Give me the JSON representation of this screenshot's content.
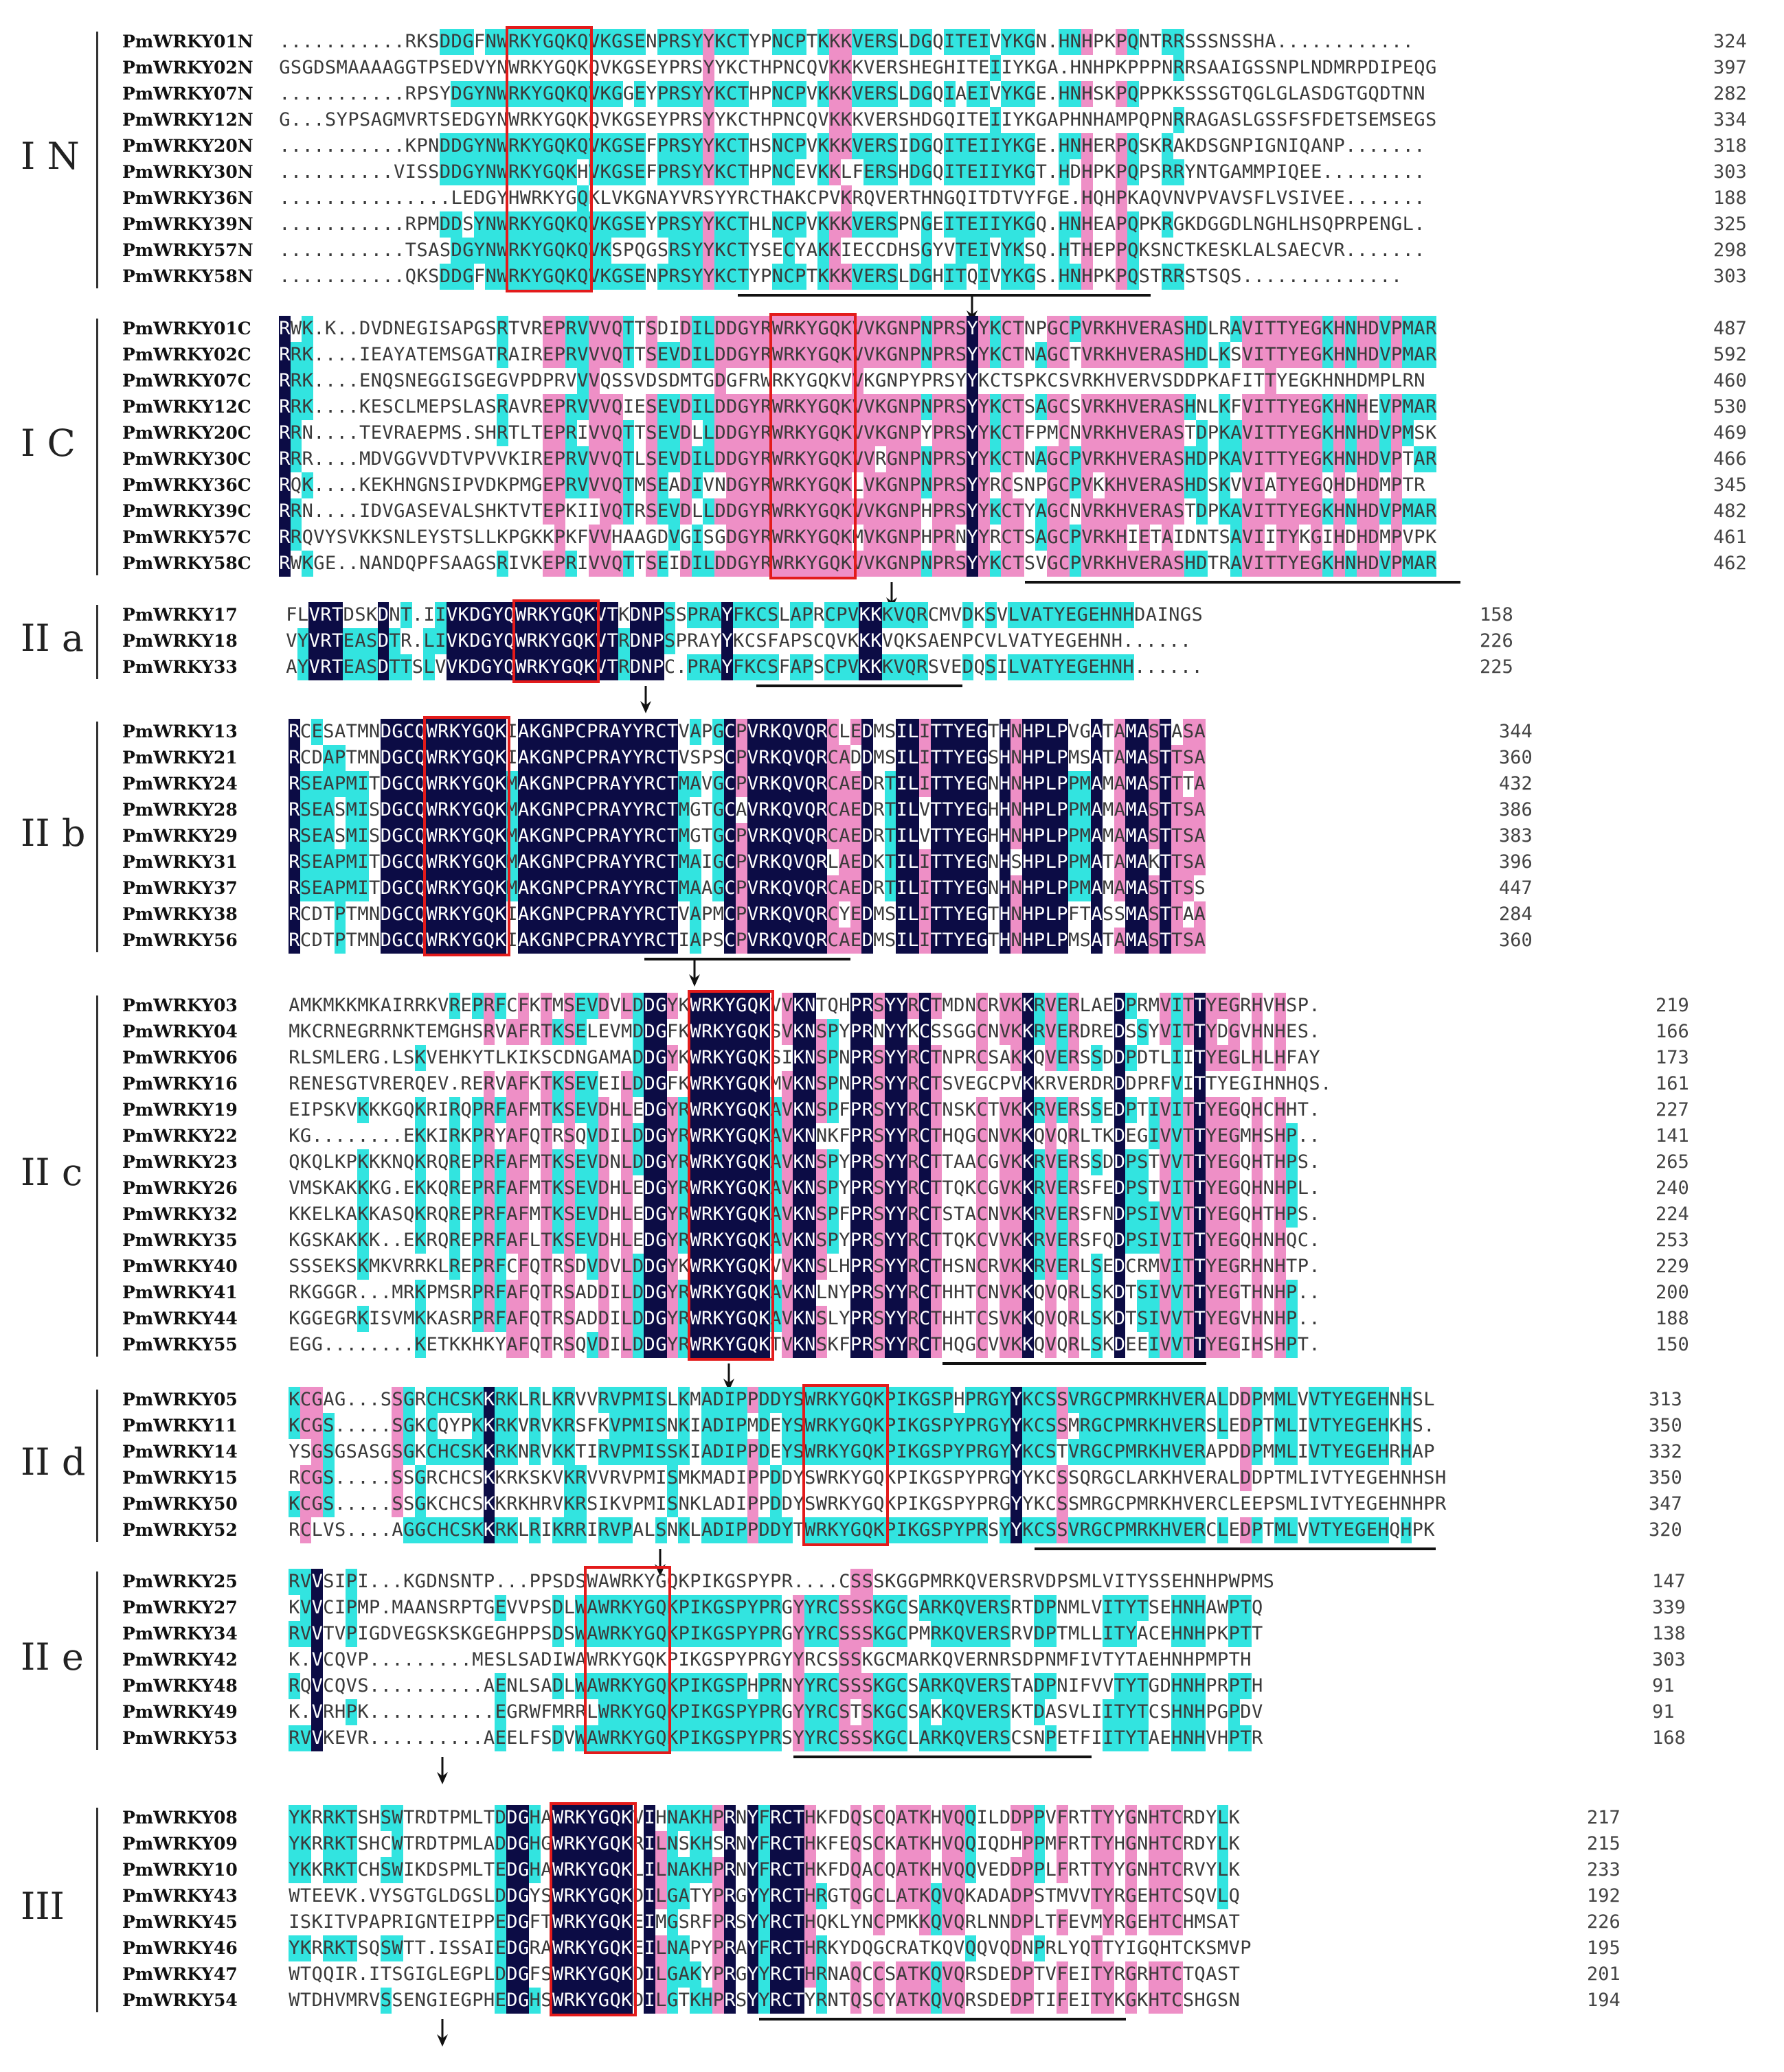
{
  "colors": {
    "identical": "#0c0c45",
    "high_similarity": "#ee8fc6",
    "low_similarity": "#32e4e0",
    "motif_box": "#e31b1b"
  },
  "groups": [
    {
      "label": "I N",
      "rows": [
        {
          "name": "PmWRKY01N",
          "seq": "...........RKSDDGFNWRKYGQKQVKGSENPRSYYKCTYPNCPTKKKVERSLDGQITEIVYKGN.HNHPKPQNTRRSSSNSSHA............",
          "end": "324"
        },
        {
          "name": "PmWRKY02N",
          "seq": "GSGDSMAAAAGGTPSEDVYNWRKYGQKQVKGSEYPRSYYKCTHPNCQVKKKVERSHEGHITEIIYKGA.HNHPKPPPNRRSAAIGSSNPLNDMRPDIPEQG",
          "end": "397"
        },
        {
          "name": "PmWRKY07N",
          "seq": "...........RPSYDGYNWRKYGQKQVKGGEYPRSYYKCTHPNCPVKKKVERSLDGQIAEIVYKGE.HNHSKPQPPKKSSSGTQGLGLASDGTGQDTNN",
          "end": "282"
        },
        {
          "name": "PmWRKY12N",
          "seq": "G...SYPSAGMVRTSEDGYNWRKYGQKQVKGSEYPRSYYKCTHPNCQVKKKVERSHDGQITEIIYKGAPHNHAMPQPNRRAGASLGSSFSFDETSEMSEGS",
          "end": "334"
        },
        {
          "name": "PmWRKY20N",
          "seq": "...........KPNDDGYNWRKYGQKQVKGSEFPRSYYKCTHSNCPVKKKVERSIDGQITEIIYKGE.HNHERPQSKRAKDSGNPIGNIQANP.......",
          "end": "318"
        },
        {
          "name": "PmWRKY30N",
          "seq": "..........VISSDDGYNWRKYGQKHVKGSEFPRSYYKCTHPNCEVKKLFERSHDGQITEIIYKGT.HDHPKPQPSRRYNTGAMMPIQEE.........",
          "end": "303"
        },
        {
          "name": "PmWRKY36N",
          "seq": "...............LEDGYHWRKYGQKLVKGNAYVRSYYRCTHAKCPVKRQVERTHNGQITDTVYFGE.HQHPKAQVNVPVAVSFLVSIVEE.......",
          "end": "188"
        },
        {
          "name": "PmWRKY39N",
          "seq": "...........RPMDDSYNWRKYGQKQVKGSEYPRSYYKCTHLNCPVKKKVERSPNGEITEIIYKGQ.HNHEAPQPKRGKDGGDLNGHLHSQPRPENGL.",
          "end": "325"
        },
        {
          "name": "PmWRKY57N",
          "seq": "...........TSASDGYNWRKYGQKQVKSPQGSRSYYKCTYSECYAKKIECCDHSGYVTEIVYKSQ.HTHEPPQKSNCTKESKLALSAECVR.......",
          "end": "298"
        },
        {
          "name": "PmWRKY58N",
          "seq": "...........QKSDDGFNWRKYGQKQVKGSENPRSYYKCTYPNCPTKKKVERSLDGHITQIVYKGS.HNHPKPQSTRRSTSQS..............",
          "end": "303"
        }
      ]
    },
    {
      "label": "I C",
      "rows": [
        {
          "name": "PmWRKY01C",
          "seq": "RWK.K..DVDNEGISAPGSRTVREPRVVVQTTSDIDILDDGYRWRKYGQKVVKGNPNPRSYYKCTNPGCPVRKHVERASHDLRAVITTYEGKHNHDVPMAR",
          "end": "487"
        },
        {
          "name": "PmWRKY02C",
          "seq": "RRK....IEAYATEMSGATRAIREPRVVVQTTSEVDILDDGYRWRKYGQKVVKGNPNPRSYYKCTNAGCTVRKHVERASHDLKSVITTYEGKHNHDVPMAR",
          "end": "592"
        },
        {
          "name": "PmWRKY07C",
          "seq": "RRK....ENQSNEGGISGEGVPDPRVVVQSSVDSDMTGDGFRWRKYGQKVVKGNPYPRSYYKCTSPKCSVRKHVERVSDDPKAFITTYEGKHNHDMPLRN",
          "end": "460"
        },
        {
          "name": "PmWRKY12C",
          "seq": "RRK....KESCLMEPSLASRAVREPRVVVQIESEVDILDDGYRWRKYGQKVVKGNPNPRSYYKCTSAGCSVRKHVERASHNLKFVITTYEGKHNHEVPMAR",
          "end": "530"
        },
        {
          "name": "PmWRKY20C",
          "seq": "RRN....TEVRAEPMS.SHRTLTEPRIVVQTTSEVDLLDDGYRWRKYGQKVVKGNPYPRSYYKCTFPMCNVRKHVERASTDPKAVITTYEGKHNHDVPMSK",
          "end": "469"
        },
        {
          "name": "PmWRKY30C",
          "seq": "RRR....MDVGGVVDTVPVVKIREPRVVVQTLSEVDILDDGYRWRKYGQKVVRGNPNPRSYYKCTNAGCPVRKHVERASHDPKAVITTYEGKHNHDVPTAR",
          "end": "466"
        },
        {
          "name": "PmWRKY36C",
          "seq": "RQK....KEKHNGNSIPVDKPMGEPRVVVQTMSEADIVNDGYRWRKYGQKLVKGNPNPRSYYRCSNPGCPVKKHVERASHDSKVVIATYEGQHDHDMPTR",
          "end": "345"
        },
        {
          "name": "PmWRKY39C",
          "seq": "RRN....IDVGASEVALSHKTVTEPKIIVQTRSEVDLLDDGYRWRKYGQKVVKGNPHPRSYYKCTYAGCNVRKHVERASTDPKAVITTYEGKHNHDVPMAR",
          "end": "482"
        },
        {
          "name": "PmWRKY57C",
          "seq": "RRQVYSVKKSNLEYSTSLLKPGKKPKFVVHAAGDVGISGDGYRWRKYGQKMVKGNPHPRNYYRCTSAGCPVRKHIETAIDNTSAVIITYKGIHDHDMPVPK",
          "end": "461"
        },
        {
          "name": "PmWRKY58C",
          "seq": "RWKGE..NANDQPFSAAGSRIVKEPRIVVQTTSEIDILDDGYRWRKYGQKVVKGNPNPRSYYKCTSVGCPVRKHVERASHDTRAVITTYEGKHNHDVPMAR",
          "end": "462"
        }
      ]
    },
    {
      "label": "II a",
      "rows": [
        {
          "name": "PmWRKY17",
          "seq": "FLVRTDSKDNT.IIVKDGYQWRKYGQKVTKDNPSSPRAYFKCSLAPRCPVKKKVQRCMVDKSVLVATYEGEHNHDAINGS",
          "end": "158"
        },
        {
          "name": "PmWRKY18",
          "seq": "VYVRTEASDTR.LIVKDGYQWRKYGQKVTRDNPSPRAYYKCSFAPSCQVKKKVQKSAENPCVLVATYEGEHNH......",
          "end": "226"
        },
        {
          "name": "PmWRKY33",
          "seq": "AYVRTEASDTTSLVVKDGYQWRKYGQKVTRDNPC.PRAYFKCSFAPSCPVKKKVQRSVEDQSILVATYEGEHNH......",
          "end": "225"
        }
      ]
    },
    {
      "label": "II b",
      "rows": [
        {
          "name": "PmWRKY13",
          "seq": "RCESATMNDGCQWRKYGQKIAKGNPCPRAYYRCTVAPGCPVRKQVQRCLEDMSILITTYEGTHNHPLPVGATAMASTASA",
          "end": "344"
        },
        {
          "name": "PmWRKY21",
          "seq": "RCDAPTMNDGCQWRKYGQKIAKGNPCPRAYYRCTVSPSCPVRKQVQRCADDMSILITTYEGSHNHPLPMSATAMASTTSA",
          "end": "360"
        },
        {
          "name": "PmWRKY24",
          "seq": "RSEAPMITDGCQWRKYGQKMAKGNPCPRAYYRCTMAVGCPVRKQVQRCAEDRTILITTYEGNHNHPLPPMAMAMASTTTA",
          "end": "432"
        },
        {
          "name": "PmWRKY28",
          "seq": "RSEASMISDGCQWRKYGQKMAKGNPCPRAYYRCTMGTGCAVRKQVQRCAEDRTILVTTYEGHHNHPLPPMAMAMASTTSA",
          "end": "386"
        },
        {
          "name": "PmWRKY29",
          "seq": "RSEASMISDGCQWRKYGQKMAKGNPCPRAYYRCTMGTGCPVRKQVQRCAEDRTILVTTYEGHHNHPLPPMAMAMASTTSA",
          "end": "383"
        },
        {
          "name": "PmWRKY31",
          "seq": "RSEAPMITDGCQWRKYGQKMAKGNPCPRAYYRCTMAIGCPVRKQVQRLAEDKTILITTYEGNHSHPLPPMATAMAKTTSA",
          "end": "396"
        },
        {
          "name": "PmWRKY37",
          "seq": "RSEAPMITDGCQWRKYGQKMAKGNPCPRAYYRCTMAAGCPVRKQVQRCAEDRTILITTYEGNHNHPLPPMAMAMASTTSS",
          "end": "447"
        },
        {
          "name": "PmWRKY38",
          "seq": "RCDTPTMNDGCQWRKYGQKIAKGNPCPRAYYRCTVAPMCPVRKQVQRCYEDMSILITTYEGTHNHPLPFTASSMASTTAA",
          "end": "284"
        },
        {
          "name": "PmWRKY56",
          "seq": "RCDTPTMNDGCQWRKYGQKIAKGNPCPRAYYRCTIAPSCPVRKQVQRCAEDMSILITTYEGTHNHPLPMSATAMASTTSA",
          "end": "360"
        }
      ]
    },
    {
      "label": "II c",
      "rows": [
        {
          "name": "PmWRKY03",
          "seq": "AMKMKKMKAIRRKVREPRFCFKTMSEVDVLDDGYKWRKYGQKVVKNTQHPRSYYRCTMDNCRVKKRVERLAEDPRMVITTYEGRHVHSP.",
          "end": "219"
        },
        {
          "name": "PmWRKY04",
          "seq": "MKCRNEGRRNKTEMGHSRVAFRTKSELEVMDDGFKWRKYGQKSVKNSPYPRNYYKCSSGGCNVKKRVERDREDSSYVITTYDGVHNHES.",
          "end": "166"
        },
        {
          "name": "PmWRKY06",
          "seq": "RLSMLERG.LSKVEHKYTLKIKSCDNGAMADDGYKWRKYGQKSIKNSPNPRSYYRCTNPRCSAKKQVERSSDDPDTLIITYEGLHLHFAY",
          "end": "173"
        },
        {
          "name": "PmWRKY16",
          "seq": "RENESGTVRERQEV.RERVAFKTKSEVEILDDGFKWRKYGQKMVKNSPNPRSYYRCTSVEGCPVKKRVERDRDDPRFVITTYEGIHNHQS.",
          "end": "161"
        },
        {
          "name": "PmWRKY19",
          "seq": "EIPSKVKKKGQKRIRQPRFAFMTKSEVDHLEDGYRWRKYGQKAVKNSPFPRSYYRCTNSKCTVKKRVERSSEDPTIVITTYEGQHCHHT.",
          "end": "227"
        },
        {
          "name": "PmWRKY22",
          "seq": "KG........EKKIRKPRYAFQTRSQVDILDDGYRWRKYGQKAVKNNKFPRSYYRCTHQGCNVKKQVQRLTKDEGIVVTTYEGMHSHP..",
          "end": "141"
        },
        {
          "name": "PmWRKY23",
          "seq": "QKQLKPKKKNQKRQREPRFAFMTKSEVDNLDDGYRWRKYGQKAVKNSPYPRSYYRCTTAACGVKKRVERSSDDPSTVVTTYEGQHTHPS.",
          "end": "265"
        },
        {
          "name": "PmWRKY26",
          "seq": "VMSKAKKKG.EKKQREPRFAFMTKSEVDHLEDGYRWRKYGQKAVKNSPYPRSYYRCTTQKCGVKKRVERSFEDPSTVITTYEGQHNHPL.",
          "end": "240"
        },
        {
          "name": "PmWRKY32",
          "seq": "KKELKAKKASQKRQREPRFAFMTKSEVDHLEDGYRWRKYGQKAVKNSPFPRSYYRCTSTACNVKKRVERSFNDPSIVVTTYEGQHTHPS.",
          "end": "224"
        },
        {
          "name": "PmWRKY35",
          "seq": "KGSKAKKK..EKRQREPRFAFLTKSEVDHLEDGYRWRKYGQKAVKNSPYPRSYYRCTTQKCVVKKRVERSFQDPSIVITTYEGQHNHQC.",
          "end": "253"
        },
        {
          "name": "PmWRKY40",
          "seq": "SSSEKSKMKVRRKLREPRFCFQTRSDVDVLDDGYKWRKYGQKVVKNSLHPRSYYRCTHSNCRVKKRVERLSEDCRMVITTYEGRHNHTP.",
          "end": "229"
        },
        {
          "name": "PmWRKY41",
          "seq": "RKGGGR...MRKPMSRPRFAFQTRSADDILDDGYRWRKYGQKAVKNLNYPRSYYRCTHHTCNVKKQVQRLSKDTSIVVTTYEGTHNHP..",
          "end": "200"
        },
        {
          "name": "PmWRKY44",
          "seq": "KGGEGRKISVMKKASRPRFAFQTRSADDILDDGYRWRKYGQKAVKNSLYPRSYYRCTHHTCSVKKQVQRLSKDTSIVVTTYEGVHNHP..",
          "end": "188"
        },
        {
          "name": "PmWRKY55",
          "seq": "EGG........KETKKHKYAFQTRSQVDILDDGYRWRKYGQKTVKNSKFPRSYYRCTHQGCVVKKQVQRLSKDEEIVVTTYEGIHSHPT.",
          "end": "150"
        }
      ]
    },
    {
      "label": "II d",
      "rows": [
        {
          "name": "PmWRKY05",
          "seq": "KCGAG...SSGRCHCSKKRKLRLKRVVRVPMISLKMADIPPDDYSWRKYGQKPIKGSPHPRGYYKCSSVRGCPMRKHVERALDDPMMLVVTYEGEHNHSL",
          "end": "313"
        },
        {
          "name": "PmWRKY11",
          "seq": "KCGS.....SGKCQYPKKRKVRVKRSFKVPMISNKIADIPMDEYSWRKYGQKPIKGSPYPRGYYKCSSMRGCPMRKHVERSLEDPTMLIVTYEGEHKHS.",
          "end": "350"
        },
        {
          "name": "PmWRKY14",
          "seq": "YSGSGSASGSGKCHCSKKRKNRVKKTIRVPMISSKIADIPPDEYSWRKYGQKPIKGSPYPRGYYKCSTVRGCPMRKHVERAPDDPMMLIVTYEGEHRHAP",
          "end": "332"
        },
        {
          "name": "PmWRKY15",
          "seq": "RCGS.....SSGRCHCSKKRKSKVKRVVRVPMISMKMADIPPDDYSWRKYGQKPIKGSPYPRGYYKCSSQRGCLARKHVERALDDPTMLIVTYEGEHNHSH",
          "end": "350"
        },
        {
          "name": "PmWRKY50",
          "seq": "KCGS.....SSGKCHCSKKRKHRVKRSIKVPMISNKLADIPPDDYSWRKYGQKPIKGSPYPRGYYKCSSMRGCPMRKHVERCLEEPSMLIVTYEGEHNHPR",
          "end": "347"
        },
        {
          "name": "PmWRKY52",
          "seq": "RCLVS....AGGCHCSKKRKLRIKRRIRVPALSNKLADIPPDDYTWRKYGQKPIKGSPYPRSYYKCSSVRGCPMRKHVERCLEDPTMLVVTYEGEHQHPK",
          "end": "320"
        }
      ]
    },
    {
      "label": "II e",
      "rows": [
        {
          "name": "PmWRKY25",
          "seq": "RVVSIPI...KGDNSNTP...PPSDSWAWRKYGQKPIKGSPYPR....CSSSKGGPMRKQVERSRVDPSMLVITYSSEHNHPWPMS",
          "end": "147"
        },
        {
          "name": "PmWRKY27",
          "seq": "KVVCIPMP.MAANSRPTGEVVPSDLWAWRKYGQKPIKGSPYPRGYYRCSSSKGCSARKQVERSRTDPNMLVITYTSEHNHAWPTQ",
          "end": "339"
        },
        {
          "name": "PmWRKY34",
          "seq": "RVVTVPIGDVEGSKSKGEGHPPSDSWAWRKYGQKPIKGSPYPRGYYRCSSSKGCPMRKQVERSRVDPTMLLITYACEHNHPKPTT",
          "end": "138"
        },
        {
          "name": "PmWRKY42",
          "seq": "K.VCQVP.........MESLSADIWAWRKYGQKPIKGSPYPRGYYRCSSSKGCMARKQVERNRSDPNMFIVTYTAEHNHPMPTH",
          "end": "303"
        },
        {
          "name": "PmWRKY48",
          "seq": "RQVCQVS..........AENLSADLWAWRKYGQKPIKGSPHPRNYYRCSSSKGCSARKQVERSTADPNIFVVTYTGDHNHPRPTH",
          "end": "91"
        },
        {
          "name": "PmWRKY49",
          "seq": "K.VRHPK...........EGRWFMRRLWRKYGQKPIKGSPYPRGYYRCSTSKGCSAKKQVERSKTDASVLIITYTCSHNHPGPDV",
          "end": "91"
        },
        {
          "name": "PmWRKY53",
          "seq": "RVVKEVR..........AEELFSDVWAWRKYGQKPIKGSPYPRSYYRCSSSKGCLARKQVERSCSNPETFIITYTAEHNHVHPTR",
          "end": "168"
        }
      ]
    },
    {
      "label": "III",
      "rows": [
        {
          "name": "PmWRKY08",
          "seq": "YKRRKTSHSWTRDTPMLTDDGHAWRKYGQKVIHNAKHPRNYFRCTHKFDQSCQATKHVQQILDDPPVFRTTYYGNHTCRDYLK",
          "end": "217"
        },
        {
          "name": "PmWRKY09",
          "seq": "YKRRKTSHCWTRDTPMLADDGHGWRKYGQKRILNSKHSRNYFRCTHKFEQSCKATKHVQQIQDHPPMFRTTYHGNHTCRDYLK",
          "end": "215"
        },
        {
          "name": "PmWRKY10",
          "seq": "YKKRKTCHSWIKDSPMLTEDGHAWRKYGQKLILNAKHPRNYFRCTHKFDQACQATKHVQQVEDDPPLFRTTYYGNHTCRVYLK",
          "end": "233"
        },
        {
          "name": "PmWRKY43",
          "seq": "WTEEVK.VYSGTGLDGSLDDGYSWRKYGQKDILGATYPRGYYRCTHRGTQGCLATKQVQKADADPSTMVVTYRGEHTCSQVLQ",
          "end": "192"
        },
        {
          "name": "PmWRKY45",
          "seq": "ISKITVPAPRIGNTEIPPEDGFTWRKYGQKEIMGSRFPRSYYRCTHQKLYNCPMKKQVQRLNNDPLTFEVMYRGEHTCHMSAT",
          "end": "226"
        },
        {
          "name": "PmWRKY46",
          "seq": "YKRRKTSQSWTT.ISSAIEDGRAWRKYGQKEILNAPYPRAYFRCTHRKYDQGCRATKQVQQVQDNPRLYQTTYIGQHTCKSMVP",
          "end": "195"
        },
        {
          "name": "PmWRKY47",
          "seq": "WTQQIR.ITSGIGLEGPLDDGFSWRKYGQKDILGAKYPRGYYRCTHRNAQCCSATKQVQRSDEDPTVFEITYRGRHTCTQAST",
          "end": "201"
        },
        {
          "name": "PmWRKY54",
          "seq": "WTDHVMRVSSENGIEGPHEDGHSWRKYGQKDILGTKHPRSYYRCTYRNTQSCYATKQVQRSDEDPTIFEITYKGKHTCSHGSN",
          "end": "194"
        }
      ]
    }
  ]
}
